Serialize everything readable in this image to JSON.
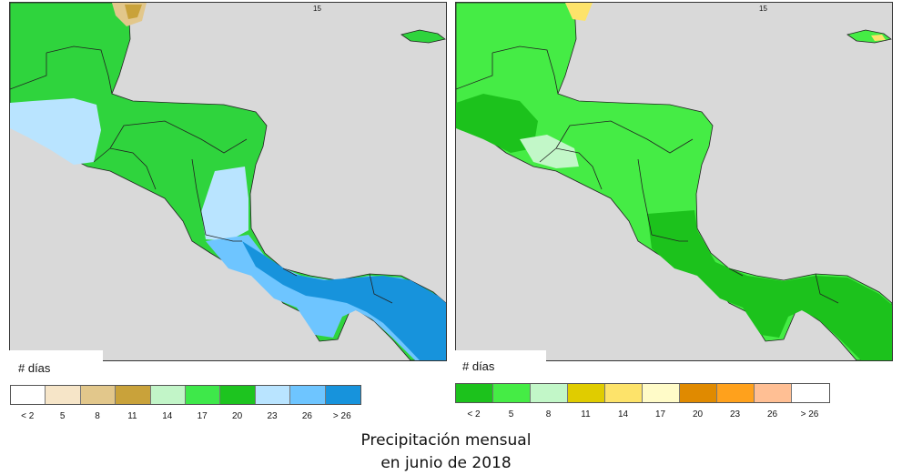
{
  "maps": {
    "left": {
      "top_tick": "15",
      "legend": {
        "title": "# días",
        "colors": [
          "#ffffff",
          "#f6e5c8",
          "#e2c78b",
          "#c9a23a",
          "#c2f5c8",
          "#3ee84a",
          "#1dc41f",
          "#b9e4ff",
          "#6ec5ff",
          "#1793dc"
        ],
        "labels": [
          "< 2",
          "5",
          "8",
          "11",
          "14",
          "17",
          "20",
          "23",
          "26",
          "> 26"
        ]
      }
    },
    "right": {
      "top_tick": "15",
      "legend": {
        "title": "# días",
        "colors": [
          "#1cc21c",
          "#45ec45",
          "#c2f7c8",
          "#e0cc00",
          "#fde36a",
          "#fffbc8",
          "#e08a00",
          "#ffa11c",
          "#ffbf94",
          "#ffffff"
        ],
        "labels": [
          "< 2",
          "5",
          "8",
          "11",
          "14",
          "17",
          "20",
          "23",
          "26",
          "> 26"
        ]
      }
    }
  },
  "caption": {
    "line1": "Precipitación mensual",
    "line2": "en junio de 2018"
  }
}
